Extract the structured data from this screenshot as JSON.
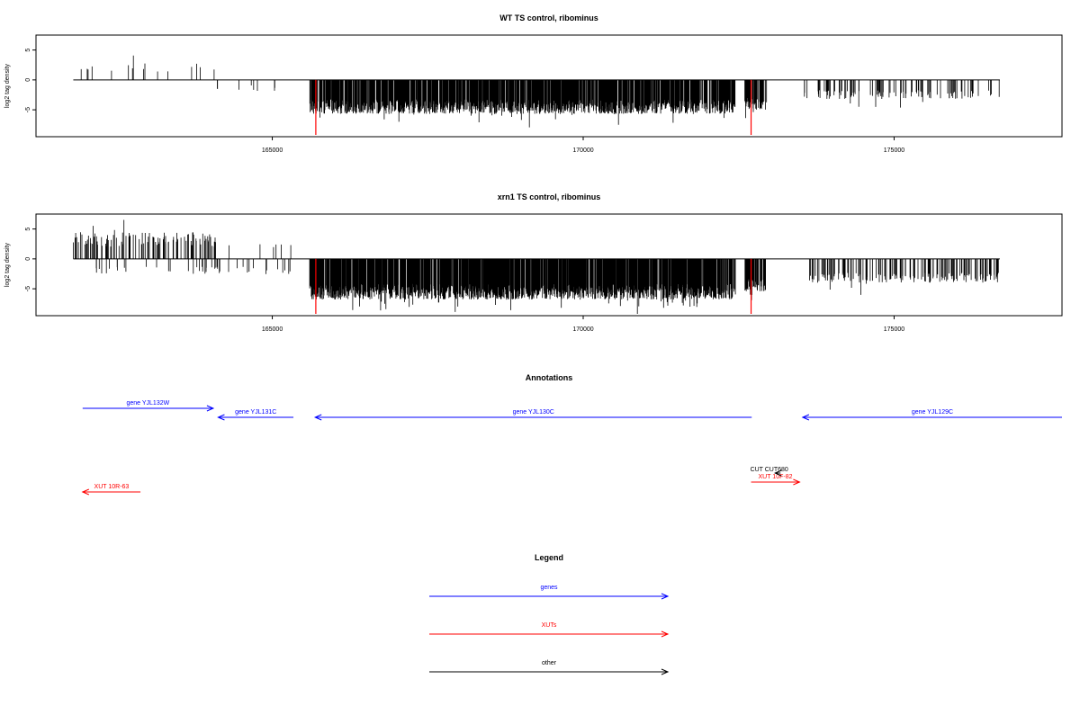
{
  "colors": {
    "gene": "#0000ff",
    "xut": "#ff0000",
    "other": "#000000",
    "cut": "#000000",
    "highlight": "#ff0000"
  },
  "chart_data": [
    {
      "type": "bar",
      "title": "WT TS control, ribominus",
      "ylabel": "log2 tag density",
      "xlim": [
        161200,
        177700
      ],
      "ylim": [
        -9.5,
        7.5
      ],
      "xticks": [
        165000,
        170000,
        175000
      ],
      "yticks": [
        -5,
        0,
        5
      ],
      "highlight_x": [
        165700,
        172700
      ],
      "densities": [
        {
          "from": 161800,
          "to": 164100,
          "base": 1.4,
          "amp": 1.4,
          "sign": 1,
          "density": 0.012
        },
        {
          "from": 164100,
          "to": 165400,
          "base": 0.9,
          "amp": 1.0,
          "sign": -1,
          "density": 0.008
        },
        {
          "from": 165600,
          "to": 172450,
          "base": 3.3,
          "amp": 2.4,
          "sign": -1,
          "density": 0.35
        },
        {
          "from": 172600,
          "to": 172950,
          "base": 3.0,
          "amp": 2.0,
          "sign": -1,
          "density": 0.3
        },
        {
          "from": 173550,
          "to": 176700,
          "base": 1.7,
          "amp": 1.5,
          "sign": -1,
          "density": 0.05
        }
      ]
    },
    {
      "type": "bar",
      "title": "xrn1 TS control, ribominus",
      "ylabel": "log2 tag density",
      "xlim": [
        161200,
        177700
      ],
      "ylim": [
        -9.5,
        7.5
      ],
      "xticks": [
        165000,
        170000,
        175000
      ],
      "yticks": [
        -5,
        0,
        5
      ],
      "highlight_x": [
        165700,
        172700
      ],
      "densities": [
        {
          "from": 161800,
          "to": 164100,
          "base": 2.0,
          "amp": 2.5,
          "sign": 1,
          "density": 0.1
        },
        {
          "from": 162100,
          "to": 164100,
          "base": 1.3,
          "amp": 1.2,
          "sign": -1,
          "density": 0.02
        },
        {
          "from": 164100,
          "to": 165350,
          "base": 1.2,
          "amp": 1.4,
          "sign": 1,
          "density": 0.012
        },
        {
          "from": 164100,
          "to": 165350,
          "base": 1.3,
          "amp": 1.3,
          "sign": -1,
          "density": 0.02
        },
        {
          "from": 165600,
          "to": 172450,
          "base": 4.2,
          "amp": 2.6,
          "sign": -1,
          "density": 0.4
        },
        {
          "from": 172600,
          "to": 172950,
          "base": 3.4,
          "amp": 2.0,
          "sign": -1,
          "density": 0.3
        },
        {
          "from": 173550,
          "to": 176700,
          "base": 2.3,
          "amp": 1.7,
          "sign": -1,
          "density": 0.1
        }
      ]
    }
  ],
  "annotations": {
    "title": "Annotations",
    "features": [
      {
        "label": "gene YJL132W",
        "kind": "gene",
        "strand": "+",
        "start": 161950,
        "end": 164050,
        "row": 0
      },
      {
        "label": "gene YJL131C",
        "kind": "gene",
        "strand": "-",
        "start": 164130,
        "end": 165340,
        "row": 1
      },
      {
        "label": "gene YJL130C",
        "kind": "gene",
        "strand": "-",
        "start": 165690,
        "end": 172710,
        "row": 1
      },
      {
        "label": "gene YJL129C",
        "kind": "gene",
        "strand": "-",
        "start": 173530,
        "end": 177700,
        "row": 1
      },
      {
        "label": "XUT 10R-63",
        "kind": "xut",
        "strand": "-",
        "start": 161950,
        "end": 162880,
        "row": 4
      },
      {
        "label": "XUT 10F-82",
        "kind": "xut",
        "strand": "+",
        "start": 172700,
        "end": 173480,
        "row": 3
      },
      {
        "label": "CUT",
        "kind": "cut",
        "strand": "",
        "start": 172790,
        "end": 172790,
        "row": 2
      },
      {
        "label": "CUT680",
        "kind": "cut",
        "strand": "-",
        "start": 173080,
        "end": 173180,
        "row": 2
      }
    ]
  },
  "legend": {
    "title": "Legend",
    "items": [
      {
        "label": "genes",
        "kind": "gene"
      },
      {
        "label": "XUTs",
        "kind": "xut"
      },
      {
        "label": "other",
        "kind": "other"
      }
    ]
  }
}
